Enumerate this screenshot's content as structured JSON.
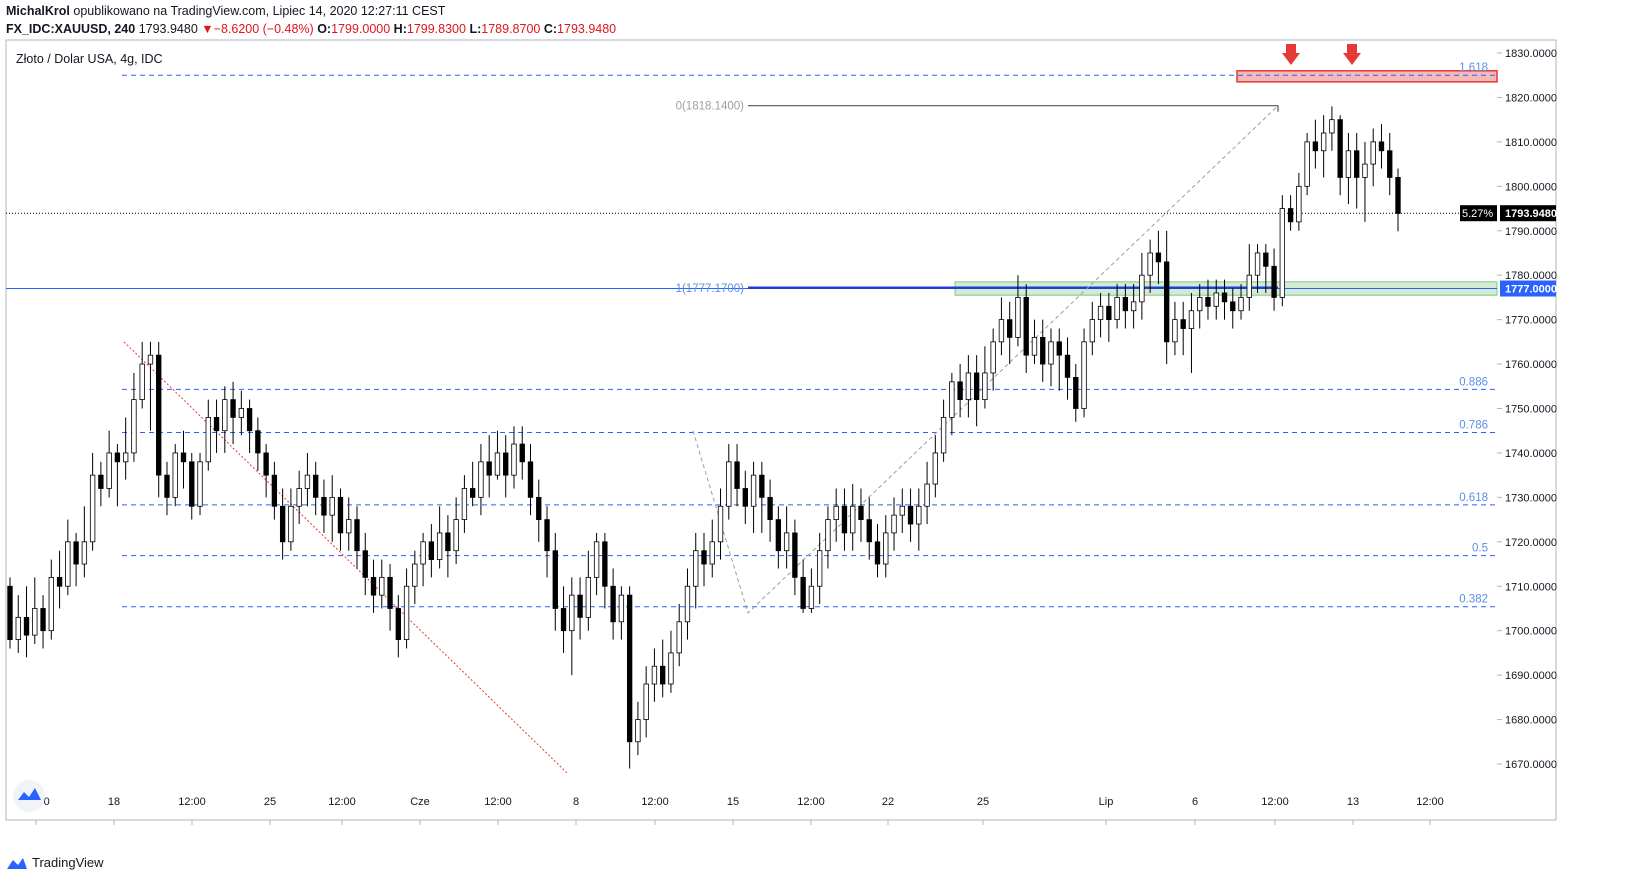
{
  "header": {
    "author": "MichalKrol",
    "published": "opublikowano na TradingView.com, Lipiec 14, 2020 12:27:11 CEST",
    "symbol": "FX_IDC:XAUUSD, 240",
    "last": "1793.9480",
    "change": "−8.6200 (−0.48%)",
    "o_label": "O:",
    "o_value": "1799.0000",
    "h_label": "H:",
    "h_value": "1799.8300",
    "l_label": "L:",
    "l_value": "1789.8700",
    "c_label": "C:",
    "c_value": "1793.9480"
  },
  "footer": {
    "brand": "TradingView",
    "logo_icon": "tradingview-logo-icon"
  },
  "colors": {
    "up": "#ffffff",
    "down": "#000000",
    "fib_line": "#2962ff",
    "fib_label": "#5b8ee6",
    "resistance": "#e53935",
    "support": "#81c784",
    "price_label_bg": "#000000",
    "support_label_bg": "#2962ff"
  },
  "chart_data": {
    "type": "candlestick",
    "title": "Złoto / Dolar USA, 4g, IDC",
    "ylim": [
      1665,
      1832
    ],
    "y_ticks": [
      "1830.0000",
      "1820.0000",
      "1810.0000",
      "1800.0000",
      "1790.0000",
      "1780.0000",
      "1770.0000",
      "1760.0000",
      "1750.0000",
      "1740.0000",
      "1730.0000",
      "1720.0000",
      "1710.0000",
      "1700.0000",
      "1690.0000",
      "1680.0000",
      "1670.0000"
    ],
    "x_ticks": [
      "12:00",
      "18",
      "12:00",
      "25",
      "12:00",
      "Cze",
      "12:00",
      "8",
      "12:00",
      "15",
      "12:00",
      "22",
      "25",
      "Lip",
      "6",
      "12:00",
      "13",
      "12:00"
    ],
    "current_price": "1793.9480",
    "current_price_value": 1793.948,
    "current_pct_label": "5.27%",
    "support_price": "1777.0000",
    "support_value": 1777.0,
    "fib_levels": [
      {
        "label": "1.618",
        "value": 1825.0
      },
      {
        "label": "0.886",
        "value": 1754.3
      },
      {
        "label": "0.786",
        "value": 1744.6
      },
      {
        "label": "0.618",
        "value": 1728.3
      },
      {
        "label": "0.5",
        "value": 1716.9
      },
      {
        "label": "0.382",
        "value": 1705.4
      }
    ],
    "fib_extension_lines": [
      {
        "label": "0(1818.1400)",
        "value": 1818.14
      },
      {
        "label": "1(1777.1700)",
        "value": 1777.17
      }
    ],
    "resistance_zone": [
      1823.5,
      1826.0
    ],
    "support_zone": [
      1775.5,
      1778.5
    ],
    "candles": [
      [
        1710,
        1698,
        1712,
        1696
      ],
      [
        1698,
        1703,
        1708,
        1695
      ],
      [
        1703,
        1699,
        1710,
        1694
      ],
      [
        1699,
        1705,
        1712,
        1697
      ],
      [
        1705,
        1700,
        1708,
        1696
      ],
      [
        1700,
        1712,
        1716,
        1698
      ],
      [
        1712,
        1710,
        1718,
        1705
      ],
      [
        1710,
        1720,
        1725,
        1708
      ],
      [
        1720,
        1715,
        1722,
        1710
      ],
      [
        1715,
        1720,
        1728,
        1712
      ],
      [
        1720,
        1735,
        1740,
        1718
      ],
      [
        1735,
        1732,
        1738,
        1728
      ],
      [
        1732,
        1740,
        1745,
        1730
      ],
      [
        1740,
        1738,
        1742,
        1728
      ],
      [
        1738,
        1740,
        1748,
        1734
      ],
      [
        1740,
        1752,
        1758,
        1738
      ],
      [
        1752,
        1760,
        1765,
        1750
      ],
      [
        1760,
        1762,
        1765,
        1745
      ],
      [
        1762,
        1735,
        1765,
        1730
      ],
      [
        1735,
        1730,
        1738,
        1726
      ],
      [
        1730,
        1740,
        1742,
        1728
      ],
      [
        1740,
        1738,
        1745,
        1732
      ],
      [
        1738,
        1728,
        1740,
        1725
      ],
      [
        1728,
        1738,
        1740,
        1726
      ],
      [
        1738,
        1748,
        1752,
        1736
      ],
      [
        1748,
        1745,
        1752,
        1740
      ],
      [
        1745,
        1752,
        1755,
        1740
      ],
      [
        1752,
        1748,
        1756,
        1742
      ],
      [
        1748,
        1750,
        1754,
        1744
      ],
      [
        1750,
        1745,
        1752,
        1740
      ],
      [
        1745,
        1740,
        1748,
        1736
      ],
      [
        1740,
        1735,
        1742,
        1730
      ],
      [
        1735,
        1728,
        1738,
        1725
      ],
      [
        1728,
        1720,
        1732,
        1716
      ],
      [
        1720,
        1728,
        1732,
        1718
      ],
      [
        1728,
        1732,
        1736,
        1724
      ],
      [
        1732,
        1735,
        1740,
        1728
      ],
      [
        1735,
        1730,
        1738,
        1726
      ],
      [
        1730,
        1726,
        1734,
        1722
      ],
      [
        1726,
        1730,
        1735,
        1720
      ],
      [
        1730,
        1722,
        1732,
        1718
      ],
      [
        1722,
        1725,
        1730,
        1718
      ],
      [
        1725,
        1718,
        1728,
        1714
      ],
      [
        1718,
        1712,
        1722,
        1708
      ],
      [
        1712,
        1708,
        1716,
        1704
      ],
      [
        1708,
        1712,
        1716,
        1705
      ],
      [
        1712,
        1705,
        1715,
        1700
      ],
      [
        1705,
        1698,
        1708,
        1694
      ],
      [
        1698,
        1710,
        1714,
        1696
      ],
      [
        1710,
        1715,
        1718,
        1706
      ],
      [
        1715,
        1720,
        1722,
        1710
      ],
      [
        1720,
        1716,
        1724,
        1712
      ],
      [
        1716,
        1722,
        1728,
        1714
      ],
      [
        1722,
        1718,
        1726,
        1712
      ],
      [
        1718,
        1725,
        1730,
        1715
      ],
      [
        1725,
        1732,
        1735,
        1722
      ],
      [
        1732,
        1730,
        1738,
        1728
      ],
      [
        1730,
        1738,
        1742,
        1726
      ],
      [
        1738,
        1735,
        1744,
        1730
      ],
      [
        1735,
        1740,
        1745,
        1734
      ],
      [
        1740,
        1735,
        1744,
        1730
      ],
      [
        1735,
        1742,
        1746,
        1732
      ],
      [
        1742,
        1738,
        1746,
        1734
      ],
      [
        1738,
        1730,
        1742,
        1726
      ],
      [
        1730,
        1725,
        1734,
        1720
      ],
      [
        1725,
        1718,
        1728,
        1712
      ],
      [
        1718,
        1705,
        1722,
        1700
      ],
      [
        1705,
        1700,
        1710,
        1695
      ],
      [
        1700,
        1708,
        1712,
        1690
      ],
      [
        1708,
        1703,
        1712,
        1698
      ],
      [
        1703,
        1712,
        1718,
        1700
      ],
      [
        1712,
        1720,
        1722,
        1708
      ],
      [
        1720,
        1710,
        1722,
        1705
      ],
      [
        1710,
        1702,
        1714,
        1698
      ],
      [
        1702,
        1708,
        1710,
        1698
      ],
      [
        1708,
        1675,
        1710,
        1669
      ],
      [
        1675,
        1680,
        1684,
        1672
      ],
      [
        1680,
        1688,
        1692,
        1676
      ],
      [
        1688,
        1692,
        1696,
        1684
      ],
      [
        1692,
        1688,
        1698,
        1685
      ],
      [
        1688,
        1695,
        1700,
        1686
      ],
      [
        1695,
        1702,
        1706,
        1692
      ],
      [
        1702,
        1710,
        1714,
        1698
      ],
      [
        1710,
        1718,
        1722,
        1705
      ],
      [
        1718,
        1715,
        1722,
        1710
      ],
      [
        1715,
        1720,
        1725,
        1712
      ],
      [
        1720,
        1728,
        1732,
        1716
      ],
      [
        1728,
        1738,
        1742,
        1725
      ],
      [
        1738,
        1732,
        1742,
        1728
      ],
      [
        1732,
        1728,
        1736,
        1724
      ],
      [
        1728,
        1735,
        1738,
        1722
      ],
      [
        1735,
        1730,
        1738,
        1722
      ],
      [
        1730,
        1725,
        1734,
        1720
      ],
      [
        1725,
        1718,
        1728,
        1714
      ],
      [
        1718,
        1722,
        1728,
        1714
      ],
      [
        1722,
        1712,
        1725,
        1708
      ],
      [
        1712,
        1705,
        1716,
        1704
      ],
      [
        1705,
        1710,
        1714,
        1704
      ],
      [
        1710,
        1718,
        1722,
        1706
      ],
      [
        1718,
        1725,
        1728,
        1714
      ],
      [
        1725,
        1728,
        1732,
        1720
      ],
      [
        1728,
        1722,
        1732,
        1718
      ],
      [
        1722,
        1728,
        1733,
        1718
      ],
      [
        1728,
        1725,
        1732,
        1720
      ],
      [
        1725,
        1720,
        1730,
        1716
      ],
      [
        1720,
        1715,
        1724,
        1712
      ],
      [
        1715,
        1722,
        1726,
        1712
      ],
      [
        1722,
        1726,
        1730,
        1718
      ],
      [
        1726,
        1728,
        1732,
        1722
      ],
      [
        1728,
        1724,
        1732,
        1720
      ],
      [
        1724,
        1728,
        1732,
        1718
      ],
      [
        1728,
        1733,
        1738,
        1724
      ],
      [
        1733,
        1740,
        1744,
        1730
      ],
      [
        1740,
        1748,
        1752,
        1738
      ],
      [
        1748,
        1756,
        1758,
        1744
      ],
      [
        1756,
        1752,
        1760,
        1748
      ],
      [
        1752,
        1758,
        1762,
        1748
      ],
      [
        1758,
        1752,
        1762,
        1746
      ],
      [
        1752,
        1758,
        1764,
        1750
      ],
      [
        1758,
        1765,
        1768,
        1754
      ],
      [
        1765,
        1770,
        1775,
        1762
      ],
      [
        1770,
        1766,
        1774,
        1760
      ],
      [
        1766,
        1775,
        1780,
        1764
      ],
      [
        1775,
        1762,
        1778,
        1758
      ],
      [
        1762,
        1766,
        1770,
        1760
      ],
      [
        1766,
        1760,
        1770,
        1756
      ],
      [
        1760,
        1765,
        1768,
        1755
      ],
      [
        1765,
        1762,
        1768,
        1754
      ],
      [
        1762,
        1757,
        1766,
        1752
      ],
      [
        1757,
        1750,
        1760,
        1747
      ],
      [
        1750,
        1765,
        1768,
        1748
      ],
      [
        1765,
        1770,
        1774,
        1762
      ],
      [
        1770,
        1773,
        1776,
        1766
      ],
      [
        1773,
        1770,
        1776,
        1765
      ],
      [
        1770,
        1775,
        1778,
        1768
      ],
      [
        1775,
        1772,
        1778,
        1768
      ],
      [
        1772,
        1774,
        1778,
        1768
      ],
      [
        1774,
        1780,
        1785,
        1770
      ],
      [
        1780,
        1785,
        1788,
        1776
      ],
      [
        1785,
        1783,
        1790,
        1778
      ],
      [
        1783,
        1765,
        1790,
        1760
      ],
      [
        1765,
        1770,
        1774,
        1762
      ],
      [
        1770,
        1768,
        1774,
        1762
      ],
      [
        1768,
        1772,
        1776,
        1758
      ],
      [
        1772,
        1775,
        1778,
        1768
      ],
      [
        1775,
        1773,
        1779,
        1770
      ],
      [
        1773,
        1776,
        1779,
        1770
      ],
      [
        1776,
        1774,
        1779,
        1770
      ],
      [
        1774,
        1772,
        1777,
        1768
      ],
      [
        1772,
        1775,
        1778,
        1770
      ],
      [
        1775,
        1780,
        1787,
        1772
      ],
      [
        1780,
        1785,
        1787,
        1776
      ],
      [
        1785,
        1782,
        1787,
        1776
      ],
      [
        1782,
        1775,
        1786,
        1772
      ],
      [
        1775,
        1795,
        1798,
        1773
      ],
      [
        1795,
        1792,
        1798,
        1790
      ],
      [
        1792,
        1800,
        1803,
        1790
      ],
      [
        1800,
        1810,
        1812,
        1798
      ],
      [
        1810,
        1808,
        1815,
        1804
      ],
      [
        1808,
        1812,
        1816,
        1802
      ],
      [
        1812,
        1815,
        1818,
        1808
      ],
      [
        1815,
        1802,
        1816,
        1798
      ],
      [
        1802,
        1808,
        1812,
        1796
      ],
      [
        1808,
        1802,
        1812,
        1795
      ],
      [
        1802,
        1805,
        1810,
        1792
      ],
      [
        1805,
        1810,
        1813,
        1800
      ],
      [
        1810,
        1808,
        1814,
        1804
      ],
      [
        1808,
        1802,
        1812,
        1798
      ],
      [
        1802,
        1793.9,
        1804,
        1789.9
      ]
    ]
  }
}
